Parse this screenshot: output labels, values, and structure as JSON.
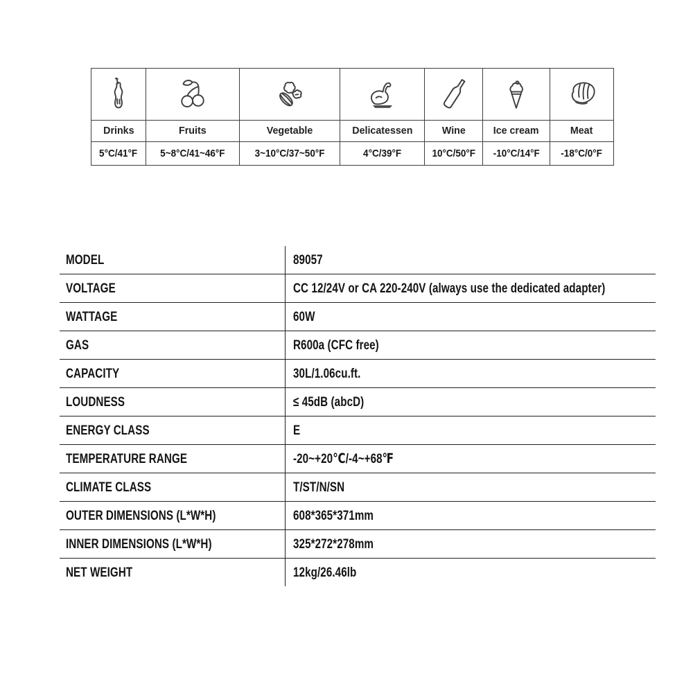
{
  "food_table": {
    "columns": [
      {
        "icon": "drink-bottle-icon",
        "label": "Drinks",
        "temp": "5°C/41°F"
      },
      {
        "icon": "cherries-icon",
        "label": "Fruits",
        "temp": "5~8°C/41~46°F"
      },
      {
        "icon": "vegetable-icon",
        "label": "Vegetable",
        "temp": "3~10°C/37~50°F"
      },
      {
        "icon": "roast-chicken-icon",
        "label": "Delicatessen",
        "temp": "4°C/39°F"
      },
      {
        "icon": "wine-bottle-icon",
        "label": "Wine",
        "temp": "10°C/50°F"
      },
      {
        "icon": "ice-cream-icon",
        "label": "Ice cream",
        "temp": "-10°C/14°F"
      },
      {
        "icon": "steak-icon",
        "label": "Meat",
        "temp": "-18°C/0°F"
      }
    ]
  },
  "spec_table": {
    "rows": [
      {
        "label": "MODEL",
        "value": "89057"
      },
      {
        "label": "VOLTAGE",
        "value": "CC 12/24V or CA 220-240V (always use the dedicated adapter)"
      },
      {
        "label": "WATTAGE",
        "value": "60W"
      },
      {
        "label": "GAS",
        "value": "R600a (CFC free)"
      },
      {
        "label": "CAPACITY",
        "value": "30L/1.06cu.ft."
      },
      {
        "label": "LOUDNESS",
        "value": "≤ 45dB (abcD)"
      },
      {
        "label": "ENERGY CLASS",
        "value": "E"
      },
      {
        "label": "TEMPERATURE RANGE",
        "value": "-20~+20℃/-4~+68℉"
      },
      {
        "label": "CLIMATE CLASS",
        "value": "T/ST/N/SN"
      },
      {
        "label": "OUTER DIMENSIONS (L*W*H)",
        "value": "608*365*371mm"
      },
      {
        "label": "INNER DIMENSIONS (L*W*H)",
        "value": "325*272*278mm"
      },
      {
        "label": "NET WEIGHT",
        "value": "12kg/26.46lb"
      }
    ]
  },
  "colors": {
    "food_table_line": "#3d3d3d",
    "spec_table_line": "#1f1f1f",
    "text": "#1c1c1c",
    "background": "#ffffff"
  }
}
